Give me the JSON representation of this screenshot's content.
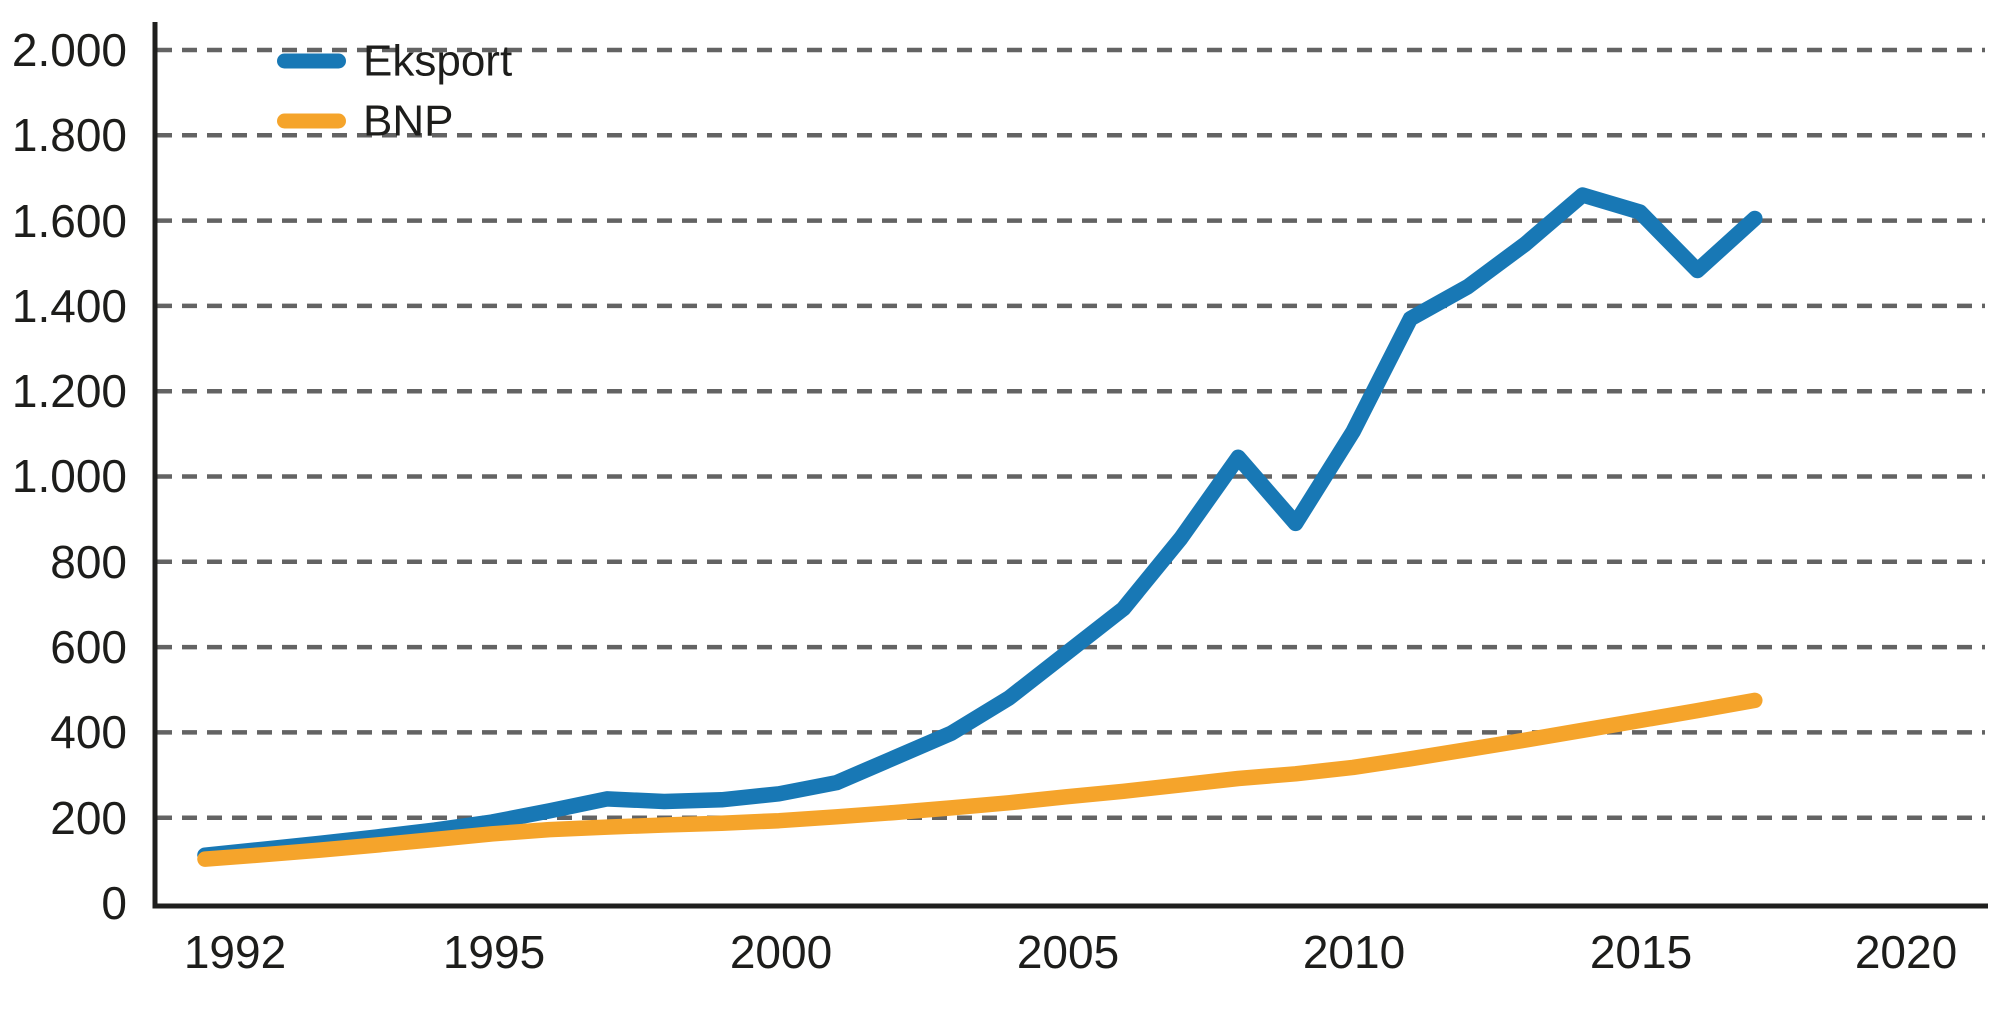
{
  "chart_data": {
    "type": "line",
    "title": "",
    "xlabel": "",
    "ylabel": "",
    "x": [
      1990,
      1991,
      1992,
      1993,
      1994,
      1995,
      1996,
      1997,
      1998,
      1999,
      2000,
      2001,
      2002,
      2003,
      2004,
      2005,
      2006,
      2007,
      2008,
      2009,
      2010,
      2011,
      2012,
      2013,
      2014,
      2015,
      2016,
      2017
    ],
    "series": [
      {
        "name": "Eksport",
        "color": "#1878b5",
        "values": [
          112,
          126,
          140,
          155,
          171,
          190,
          216,
          244,
          238,
          242,
          256,
          282,
          340,
          398,
          480,
          585,
          690,
          855,
          1045,
          890,
          1105,
          1370,
          1445,
          1545,
          1660,
          1620,
          1483,
          1605
        ]
      },
      {
        "name": "BNP",
        "color": "#f5a42b",
        "values": [
          103,
          113,
          124,
          136,
          149,
          162,
          172,
          178,
          183,
          187,
          193,
          202,
          212,
          223,
          235,
          249,
          262,
          277,
          292,
          303,
          318,
          338,
          360,
          382,
          405,
          428,
          451,
          475
        ]
      }
    ],
    "x_tick_labels": [
      "1992",
      "1995",
      "2000",
      "2005",
      "2010",
      "2015",
      "2020"
    ],
    "y_tick_labels": [
      "0",
      "200",
      "400",
      "600",
      "800",
      "1.000",
      "1.200",
      "1.400",
      "1.600",
      "1.800",
      "2.000"
    ],
    "ylim": [
      0,
      2000
    ],
    "grid": "horizontal-dashed",
    "legend_position": "top-left"
  },
  "colors": {
    "eksport_line": "#1878b5",
    "bnp_line": "#f5a42b",
    "gridline": "#636363",
    "axis": "#1f1f1e",
    "text": "#1d1d1b",
    "background": "#ffffff"
  }
}
